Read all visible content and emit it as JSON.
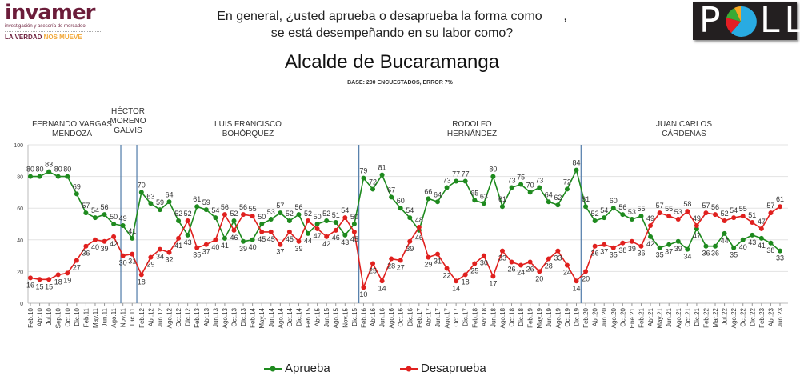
{
  "header": {
    "brand_logo": {
      "name": "invamer",
      "subtitle": "investigación y asesoría de mercadeo",
      "tagline_a": "LA VERDAD",
      "tagline_b": "NOS MUEVE"
    },
    "poll_logo": "POLL",
    "question_line1": "En general, ¿usted aprueba o desaprueba la forma como___,",
    "question_line2": "se está desempeñando en su labor como?",
    "title": "Alcalde de Bucaramanga",
    "base": "BASE: 200 ENCUESTADOS, ERROR 7%"
  },
  "mayors": [
    {
      "line1": "FERNANDO VARGAS",
      "line2": "MENDOZA"
    },
    {
      "line1": "HÉCTOR",
      "line2": "MORENO",
      "line3": "GALVIS"
    },
    {
      "line1": "LUIS FRANCISCO",
      "line2": "BOHÓRQUEZ"
    },
    {
      "line1": "RODOLFO",
      "line2": "HERNÁNDEZ"
    },
    {
      "line1": "JUAN CARLOS",
      "line2": "CÁRDENAS"
    }
  ],
  "chart_data": {
    "type": "line",
    "title": "Alcalde de Bucaramanga",
    "ylim": [
      0,
      100
    ],
    "yticks": [
      0,
      20,
      40,
      60,
      80,
      100
    ],
    "grid": true,
    "legend": "bottom",
    "mayor_change_after": [
      "Ago.11",
      "Dic.11",
      "Dic.15",
      "Dic.19"
    ],
    "categories": [
      "Feb.10",
      "Abr.10",
      "Jul.10",
      "Sep.10",
      "Oct.10",
      "Dic.10",
      "Feb.11",
      "May.11",
      "Jun.11",
      "Ago.11",
      "Nov.11",
      "Dic.11",
      "Feb.12",
      "Abr.12",
      "Jun.12",
      "Ago.12",
      "Oct.12",
      "Dic.12",
      "Feb.13",
      "Abr.13",
      "Jun.13",
      "Ago.13",
      "Oct.13",
      "Dic.13",
      "Feb.14",
      "May.14",
      "Jun.14",
      "Ago.14",
      "Oct.14",
      "Dic.14",
      "Feb.15",
      "Abr.15",
      "Jun.15",
      "Ago.15",
      "Nov.15",
      "Dic.15",
      "Feb.16",
      "Abr.16",
      "Jun.16",
      "Ago.16",
      "Oct.16",
      "Dic.16",
      "Feb.17",
      "Abr.17",
      "Jun.17",
      "Ago.17",
      "Oct.17",
      "Dic.17",
      "Feb.18",
      "Abr.18",
      "Jun.18",
      "Ago.18",
      "Oct.18",
      "Dic.18",
      "Feb.19",
      "May.19",
      "Jun.19",
      "Ago.19",
      "Oct.19",
      "Dic.19",
      "Feb.20",
      "Abr.20",
      "Jun.20",
      "Ago.20",
      "Oct.20",
      "Ene.21",
      "Feb.21",
      "Abr.21",
      "May.21",
      "Jun.21",
      "Ago.21",
      "Oct.21",
      "Dic.21",
      "Feb.22",
      "Mar.22",
      "Jul.22",
      "Ago.22",
      "Oct.22",
      "Dic.22",
      "Feb.23",
      "Abr.23",
      "Jun.23"
    ],
    "series": [
      {
        "name": "Aprueba",
        "color": "#1e8a1e",
        "values": [
          80,
          80,
          83,
          80,
          80,
          69,
          57,
          54,
          56,
          50,
          49,
          41,
          70,
          63,
          59,
          64,
          52,
          43,
          61,
          59,
          54,
          41,
          52,
          39,
          40,
          50,
          53,
          57,
          52,
          56,
          44,
          50,
          52,
          51,
          43,
          50,
          79,
          72,
          81,
          67,
          60,
          54,
          46,
          66,
          64,
          73,
          77,
          77,
          65,
          63,
          80,
          61,
          73,
          75,
          70,
          73,
          64,
          62,
          72,
          84,
          61,
          52,
          54,
          60,
          56,
          53,
          55,
          42,
          35,
          37,
          39,
          34,
          47,
          36,
          36,
          44,
          35,
          40,
          43,
          41,
          38,
          33
        ]
      },
      {
        "name": "Desaprueba",
        "color": "#e0201e",
        "values": [
          16,
          15,
          15,
          18,
          19,
          27,
          36,
          40,
          39,
          42,
          30,
          31,
          18,
          29,
          34,
          32,
          41,
          52,
          35,
          37,
          40,
          56,
          46,
          56,
          55,
          45,
          45,
          37,
          45,
          39,
          52,
          47,
          42,
          46,
          54,
          45,
          10,
          25,
          14,
          28,
          27,
          39,
          48,
          29,
          31,
          22,
          14,
          18,
          25,
          30,
          17,
          33,
          26,
          24,
          26,
          20,
          28,
          33,
          24,
          14,
          20,
          36,
          37,
          35,
          38,
          39,
          36,
          49,
          57,
          55,
          53,
          58,
          49,
          57,
          56,
          52,
          54,
          55,
          51,
          47,
          57,
          61
        ]
      }
    ]
  }
}
